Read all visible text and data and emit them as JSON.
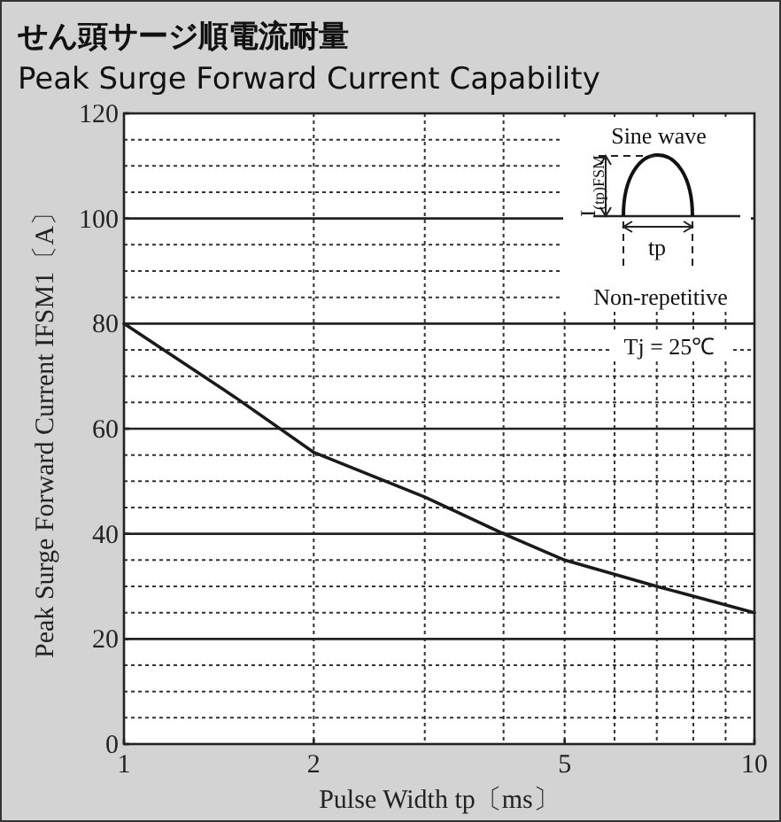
{
  "chart_data": {
    "type": "line",
    "title": "せん頭サージ順電流耐量",
    "subtitle": "Peak Surge Forward Current Capability",
    "xlabel": "Pulse Width  tp〔ms〕",
    "ylabel": "Peak Surge Forward Current  IFSM1〔A〕",
    "x": [
      1,
      1.5,
      2,
      3,
      4,
      5,
      7,
      10
    ],
    "series": [
      {
        "color": "#1a1a1a",
        "values": [
          80,
          66,
          55.5,
          47,
          40,
          35,
          30,
          25
        ]
      }
    ],
    "log": "x",
    "xlim": [
      1,
      10
    ],
    "xticks": [
      1,
      2,
      5,
      10
    ],
    "ylim": [
      0,
      120
    ],
    "yticks": [
      0,
      20,
      40,
      60,
      80,
      100,
      120
    ],
    "grid": true,
    "marker": "none",
    "line_style": "solid",
    "annotations": [
      "Sine wave",
      "I$_{(tp)FSM}$",
      "tp",
      "Non-repetitive",
      "Tj = 25℃"
    ]
  }
}
